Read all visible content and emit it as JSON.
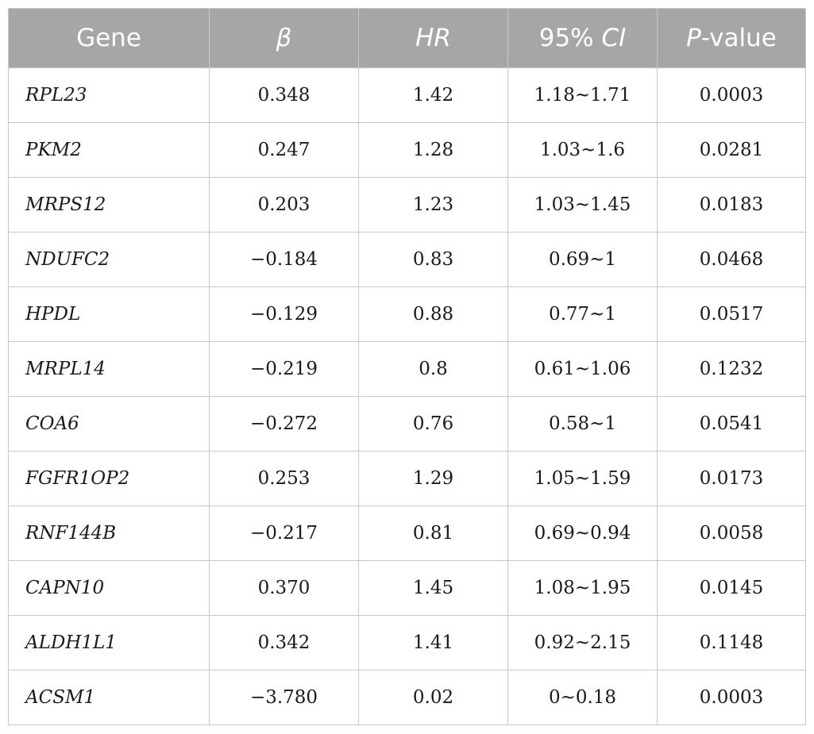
{
  "table": {
    "headers": {
      "gene": "Gene",
      "beta": "β",
      "hr": "HR",
      "ci": "95% CI",
      "pvalue_italic": "P",
      "pvalue_rest": "-value"
    },
    "rows": [
      {
        "gene": "RPL23",
        "beta": "0.348",
        "hr": "1.42",
        "ci": "1.18~1.71",
        "p": "0.0003"
      },
      {
        "gene": "PKM2",
        "beta": "0.247",
        "hr": "1.28",
        "ci": "1.03~1.6",
        "p": "0.0281"
      },
      {
        "gene": "MRPS12",
        "beta": "0.203",
        "hr": "1.23",
        "ci": "1.03~1.45",
        "p": "0.0183"
      },
      {
        "gene": "NDUFC2",
        "beta": "−0.184",
        "hr": "0.83",
        "ci": "0.69~1",
        "p": "0.0468"
      },
      {
        "gene": "HPDL",
        "beta": "−0.129",
        "hr": "0.88",
        "ci": "0.77~1",
        "p": "0.0517"
      },
      {
        "gene": "MRPL14",
        "beta": "−0.219",
        "hr": "0.8",
        "ci": "0.61~1.06",
        "p": "0.1232"
      },
      {
        "gene": "COA6",
        "beta": "−0.272",
        "hr": "0.76",
        "ci": "0.58~1",
        "p": "0.0541"
      },
      {
        "gene": "FGFR1OP2",
        "beta": "0.253",
        "hr": "1.29",
        "ci": "1.05~1.59",
        "p": "0.0173"
      },
      {
        "gene": "RNF144B",
        "beta": "−0.217",
        "hr": "0.81",
        "ci": "0.69~0.94",
        "p": "0.0058"
      },
      {
        "gene": "CAPN10",
        "beta": "0.370",
        "hr": "1.45",
        "ci": "1.08~1.95",
        "p": "0.0145"
      },
      {
        "gene": "ALDH1L1",
        "beta": "0.342",
        "hr": "1.41",
        "ci": "0.92~2.15",
        "p": "0.1148"
      },
      {
        "gene": "ACSM1",
        "beta": "−3.780",
        "hr": "0.02",
        "ci": "0~0.18",
        "p": "0.0003"
      }
    ]
  },
  "colors": {
    "header_bg": "#a6a6a6",
    "header_text": "#ffffff",
    "border": "#c8c8c8",
    "body_text": "#1a1a1a"
  }
}
